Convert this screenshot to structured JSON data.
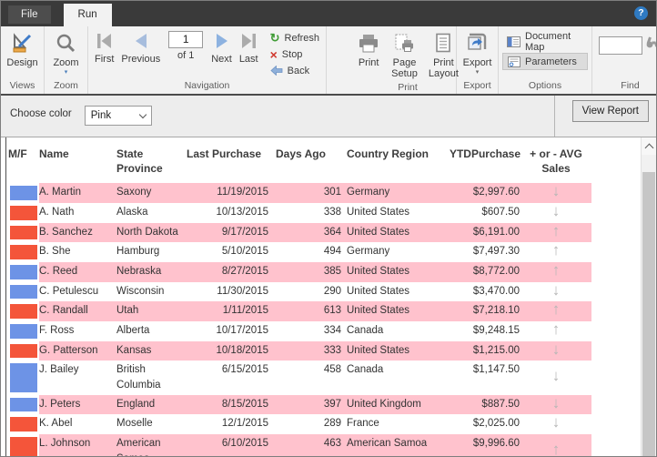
{
  "titlebar": {
    "tabs": [
      {
        "label": "File"
      },
      {
        "label": "Run"
      }
    ],
    "help": "?"
  },
  "ribbon": {
    "views_group_label": "Views",
    "design_label": "Design",
    "zoom_group_label": "Zoom",
    "zoom_label": "Zoom",
    "navigation_group_label": "Navigation",
    "first_label": "First",
    "previous_label": "Previous",
    "page_number": "1",
    "of_label": "of 1",
    "next_label": "Next",
    "last_label": "Last",
    "refresh_label": "Refresh",
    "stop_label": "Stop",
    "back_label": "Back",
    "print_group_label": "Print",
    "print_label": "Print",
    "page_setup_label": "Page Setup",
    "print_layout_label": "Print Layout",
    "export_group_label": "Export",
    "export_label": "Export",
    "options_group_label": "Options",
    "document_map_label": "Document Map",
    "parameters_label": "Parameters",
    "find_group_label": "Find",
    "find_value": ""
  },
  "parameter_bar": {
    "choose_color_label": "Choose color",
    "color_value": "Pink",
    "view_report_label": "View Report"
  },
  "table": {
    "headers": [
      "M/F",
      "Name",
      "State Province",
      "Last Purchase",
      "Days Ago",
      "Country Region",
      "YTDPurchase",
      "+ or - AVG Sales"
    ],
    "rows": [
      {
        "swatch": "blue",
        "name": "A. Martin",
        "state": "Saxony",
        "last_purchase": "11/19/2015",
        "days_ago": "301",
        "country": "Germany",
        "ytd": "$2,997.60",
        "trend": "down"
      },
      {
        "swatch": "red",
        "name": "A. Nath",
        "state": "Alaska",
        "last_purchase": "10/13/2015",
        "days_ago": "338",
        "country": "United States",
        "ytd": "$607.50",
        "trend": "down"
      },
      {
        "swatch": "red",
        "name": "B. Sanchez",
        "state": "North Dakota",
        "last_purchase": "9/17/2015",
        "days_ago": "364",
        "country": "United States",
        "ytd": "$6,191.00",
        "trend": "up"
      },
      {
        "swatch": "red",
        "name": "B. She",
        "state": "Hamburg",
        "last_purchase": "5/10/2015",
        "days_ago": "494",
        "country": "Germany",
        "ytd": "$7,497.30",
        "trend": "up"
      },
      {
        "swatch": "blue",
        "name": "C. Reed",
        "state": "Nebraska",
        "last_purchase": "8/27/2015",
        "days_ago": "385",
        "country": "United States",
        "ytd": "$8,772.00",
        "trend": "up"
      },
      {
        "swatch": "blue",
        "name": "C. Petulescu",
        "state": "Wisconsin",
        "last_purchase": "11/30/2015",
        "days_ago": "290",
        "country": "United States",
        "ytd": "$3,470.00",
        "trend": "down"
      },
      {
        "swatch": "red",
        "name": "C. Randall",
        "state": "Utah",
        "last_purchase": "1/11/2015",
        "days_ago": "613",
        "country": "United States",
        "ytd": "$7,218.10",
        "trend": "up"
      },
      {
        "swatch": "blue",
        "name": "F. Ross",
        "state": "Alberta",
        "last_purchase": "10/17/2015",
        "days_ago": "334",
        "country": "Canada",
        "ytd": "$9,248.15",
        "trend": "up"
      },
      {
        "swatch": "red",
        "name": "G. Patterson",
        "state": "Kansas",
        "last_purchase": "10/18/2015",
        "days_ago": "333",
        "country": "United States",
        "ytd": "$1,215.00",
        "trend": "down"
      },
      {
        "swatch": "blue",
        "name": "J. Bailey",
        "state": "British Columbia",
        "last_purchase": "6/15/2015",
        "days_ago": "458",
        "country": "Canada",
        "ytd": "$1,147.50",
        "trend": "down"
      },
      {
        "swatch": "blue",
        "name": "J. Peters",
        "state": "England",
        "last_purchase": "8/15/2015",
        "days_ago": "397",
        "country": "United Kingdom",
        "ytd": "$887.50",
        "trend": "down"
      },
      {
        "swatch": "red",
        "name": "K. Abel",
        "state": "Moselle",
        "last_purchase": "12/1/2015",
        "days_ago": "289",
        "country": "France",
        "ytd": "$2,025.00",
        "trend": "down"
      },
      {
        "swatch": "red",
        "name": "L. Johnson",
        "state": "American Samoa",
        "last_purchase": "6/10/2015",
        "days_ago": "463",
        "country": "American Samoa",
        "ytd": "$9,996.60",
        "trend": "up"
      }
    ]
  },
  "colors": {
    "swatch_blue": "#6d93e6",
    "swatch_red": "#f4553a",
    "row_pink": "#ffc2cd",
    "accent_blue": "#2f7ac2"
  }
}
